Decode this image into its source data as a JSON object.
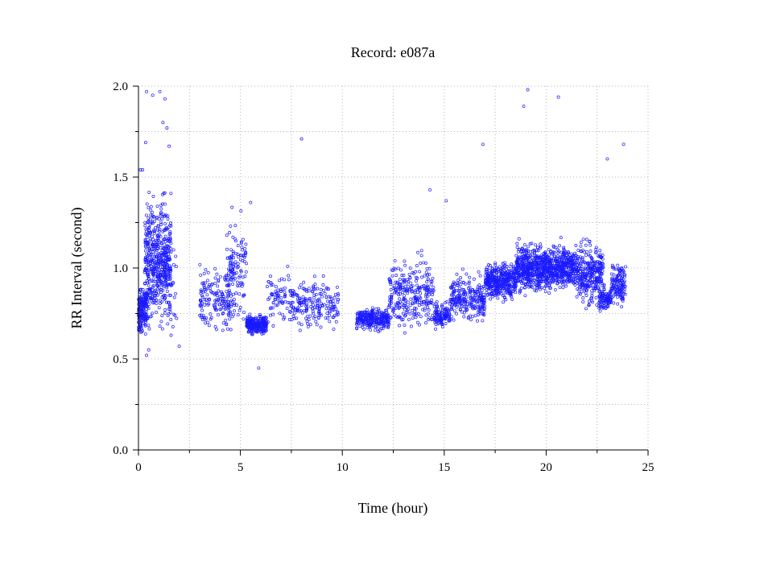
{
  "chart_data": {
    "type": "scatter",
    "title": "Record:  e087a",
    "xlabel": "Time (hour)",
    "ylabel": "RR Interval (second)",
    "xlim": [
      0,
      25
    ],
    "ylim": [
      0,
      2.0
    ],
    "xticks": [
      0,
      5,
      10,
      15,
      20,
      25
    ],
    "xtick_labels": [
      "0",
      "5",
      "10",
      "15",
      "20",
      "25"
    ],
    "yticks": [
      0.0,
      0.5,
      1.0,
      1.5,
      2.0
    ],
    "ytick_labels": [
      "0.0",
      "0.5",
      "1.0",
      "1.5",
      "2.0"
    ],
    "grid": true,
    "marker_color": "#1a1aff",
    "series": [
      {
        "marker": "open-circle",
        "clusters": [
          {
            "x": [
              0.0,
              0.4
            ],
            "y_center": 0.77,
            "y_spread": 0.1,
            "density": 0.9
          },
          {
            "x": [
              0.3,
              1.6
            ],
            "y_center": 1.02,
            "y_spread": 0.28,
            "density": 1.0
          },
          {
            "x": [
              1.6,
              1.9
            ],
            "y_center": 0.9,
            "y_spread": 0.25,
            "density": 0.1
          },
          {
            "x": [
              3.0,
              4.5
            ],
            "y_center": 0.83,
            "y_spread": 0.15,
            "density": 0.25
          },
          {
            "x": [
              4.3,
              5.3
            ],
            "y_center": 0.98,
            "y_spread": 0.22,
            "density": 0.3
          },
          {
            "x": [
              5.3,
              6.3
            ],
            "y_center": 0.69,
            "y_spread": 0.04,
            "density": 0.6
          },
          {
            "x": [
              6.3,
              7.5
            ],
            "y_center": 0.82,
            "y_spread": 0.14,
            "density": 0.15
          },
          {
            "x": [
              7.5,
              9.8
            ],
            "y_center": 0.8,
            "y_spread": 0.1,
            "density": 0.2
          },
          {
            "x": [
              10.7,
              12.3
            ],
            "y_center": 0.72,
            "y_spread": 0.05,
            "density": 0.4
          },
          {
            "x": [
              12.3,
              14.5
            ],
            "y_center": 0.86,
            "y_spread": 0.15,
            "density": 0.3
          },
          {
            "x": [
              14.5,
              15.3
            ],
            "y_center": 0.74,
            "y_spread": 0.06,
            "density": 0.35
          },
          {
            "x": [
              15.3,
              17.0
            ],
            "y_center": 0.83,
            "y_spread": 0.1,
            "density": 0.35
          },
          {
            "x": [
              17.0,
              18.5
            ],
            "y_center": 0.93,
            "y_spread": 0.08,
            "density": 0.6
          },
          {
            "x": [
              18.5,
              21.5
            ],
            "y_center": 1.0,
            "y_spread": 0.1,
            "density": 0.7
          },
          {
            "x": [
              21.5,
              22.8
            ],
            "y_center": 0.97,
            "y_spread": 0.14,
            "density": 0.55
          },
          {
            "x": [
              22.6,
              23.2
            ],
            "y_center": 0.83,
            "y_spread": 0.05,
            "density": 0.4
          },
          {
            "x": [
              23.2,
              23.9
            ],
            "y_center": 0.92,
            "y_spread": 0.1,
            "density": 0.45
          }
        ],
        "outliers": [
          {
            "x": 0.1,
            "y": 1.54
          },
          {
            "x": 0.2,
            "y": 1.54
          },
          {
            "x": 0.35,
            "y": 1.69
          },
          {
            "x": 0.4,
            "y": 1.97
          },
          {
            "x": 0.7,
            "y": 1.95
          },
          {
            "x": 1.05,
            "y": 1.97
          },
          {
            "x": 1.2,
            "y": 1.8
          },
          {
            "x": 1.3,
            "y": 1.93
          },
          {
            "x": 1.4,
            "y": 1.77
          },
          {
            "x": 1.5,
            "y": 1.67
          },
          {
            "x": 0.4,
            "y": 0.52
          },
          {
            "x": 0.5,
            "y": 0.55
          },
          {
            "x": 2.0,
            "y": 0.57
          },
          {
            "x": 5.5,
            "y": 1.36
          },
          {
            "x": 5.9,
            "y": 0.45
          },
          {
            "x": 8.0,
            "y": 1.71
          },
          {
            "x": 14.3,
            "y": 1.43
          },
          {
            "x": 15.1,
            "y": 1.37
          },
          {
            "x": 16.9,
            "y": 1.68
          },
          {
            "x": 18.9,
            "y": 1.89
          },
          {
            "x": 19.1,
            "y": 1.98
          },
          {
            "x": 20.6,
            "y": 1.94
          },
          {
            "x": 23.0,
            "y": 1.6
          },
          {
            "x": 23.8,
            "y": 1.68
          }
        ]
      }
    ]
  }
}
